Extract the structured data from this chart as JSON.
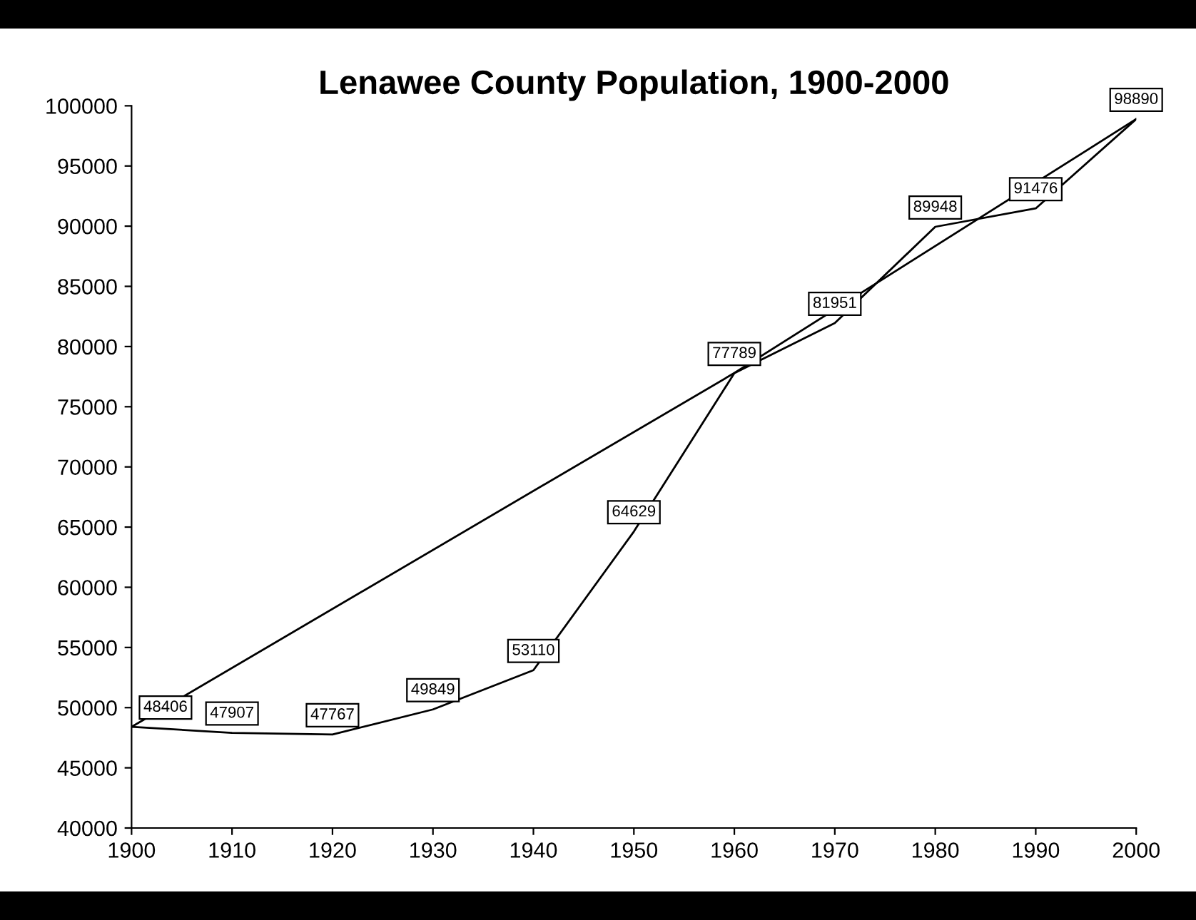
{
  "chart_data": {
    "type": "line",
    "title": "Lenawee County Population, 1900-2000",
    "x": [
      1900,
      1910,
      1920,
      1930,
      1940,
      1950,
      1960,
      1970,
      1980,
      1990,
      2000
    ],
    "series": [
      {
        "color": "#000000",
        "values": [
          48406,
          47907,
          47767,
          49849,
          53110,
          64629,
          77789,
          81951,
          89948,
          91476,
          98890
        ],
        "value_labels": [
          "48406",
          "47907",
          "47767",
          "49849",
          "53110",
          "64629",
          "77789",
          "81951",
          "89948",
          "91476",
          "98890"
        ]
      },
      {
        "color": "#000000",
        "x": [
          1900,
          1960,
          2000
        ],
        "values": [
          48400,
          77800,
          98900
        ]
      }
    ],
    "xlim": [
      1900,
      2000
    ],
    "xticks": [
      1900,
      1910,
      1920,
      1930,
      1940,
      1950,
      1960,
      1970,
      1980,
      1990,
      2000
    ],
    "ylim": [
      40000,
      100000
    ],
    "yticks": [
      40000,
      45000,
      50000,
      55000,
      60000,
      65000,
      70000,
      75000,
      80000,
      85000,
      90000,
      95000,
      100000
    ],
    "grid": false,
    "legend": false,
    "marker": "none",
    "line_style": "solid"
  }
}
